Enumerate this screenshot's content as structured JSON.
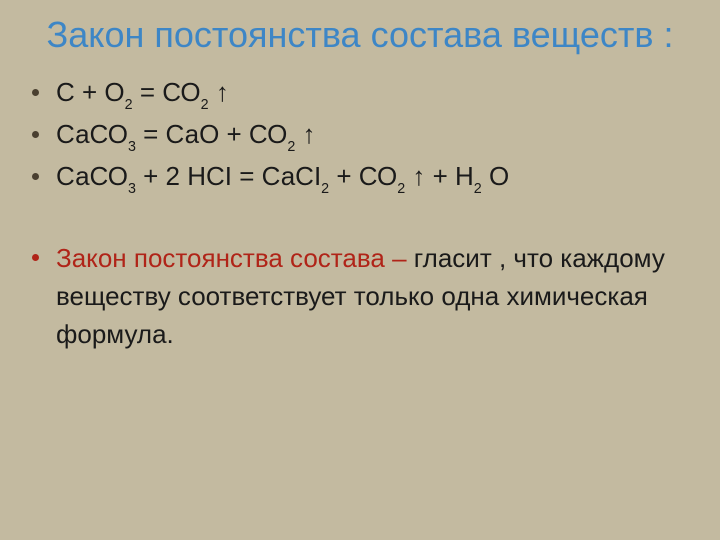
{
  "colors": {
    "background": "#c3baa0",
    "title": "#3d86c6",
    "bullet_dark": "#4a4030",
    "bullet_red": "#b02418",
    "text_dark": "#1a1a1a",
    "text_red": "#b02418"
  },
  "title": "Закон постоянства состава веществ :",
  "equations": [
    [
      {
        "t": "С + О"
      },
      {
        "t": "2",
        "sub": true
      },
      {
        "t": " = СО"
      },
      {
        "t": "2",
        "sub": true
      },
      {
        "t": " ↑"
      }
    ],
    [
      {
        "t": "СаСО"
      },
      {
        "t": "3",
        "sub": true
      },
      {
        "t": " = СаО + СО"
      },
      {
        "t": "2",
        "sub": true
      },
      {
        "t": " ↑"
      }
    ],
    [
      {
        "t": "СаСО"
      },
      {
        "t": "3",
        "sub": true
      },
      {
        "t": "  + 2 НСI = СаСI"
      },
      {
        "t": "2",
        "sub": true
      },
      {
        "t": " + СО"
      },
      {
        "t": "2",
        "sub": true
      },
      {
        "t": " ↑ + Н"
      },
      {
        "t": "2",
        "sub": true
      },
      {
        "t": " О"
      }
    ]
  ],
  "definition": {
    "term": "Закон постоянства состава – ",
    "body": "гласит , что каждому веществу соответствует только одна химическая формула."
  }
}
